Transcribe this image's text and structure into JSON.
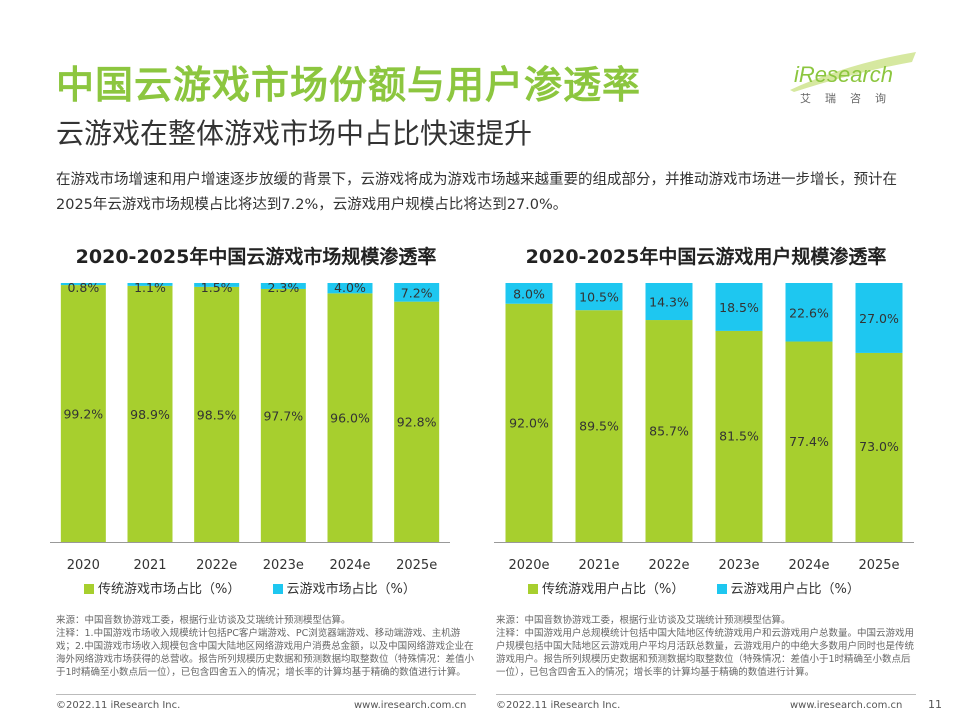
{
  "header": {
    "title": "中国云游戏市场份额与用户渗透率",
    "subtitle": "云游戏在整体游戏市场中占比快速提升",
    "logo_word": "iResearch",
    "logo_sub": "艾瑞咨询"
  },
  "intro": "在游戏市场增速和用户增速逐步放缓的背景下，云游戏将成为游戏市场越来越重要的组成部分，并推动游戏市场进一步增长，预计在2025年云游戏市场规模占比将达到7.2%，云游戏用户规模占比将达到27.0%。",
  "colors": {
    "traditional": "#a7cf2e",
    "cloud": "#1ec7f0",
    "title": "#8cc63f"
  },
  "chart_data": [
    {
      "type": "bar",
      "stacked": true,
      "title": "2020-2025年中国云游戏市场规模渗透率",
      "categories": [
        "2020",
        "2021",
        "2022e",
        "2023e",
        "2024e",
        "2025e"
      ],
      "ylim": [
        0,
        100
      ],
      "series": [
        {
          "name": "传统游戏市场占比（%）",
          "values": [
            99.2,
            98.9,
            98.5,
            97.7,
            96.0,
            92.8
          ]
        },
        {
          "name": "云游戏市场占比（%）",
          "values": [
            0.8,
            1.1,
            1.5,
            2.3,
            4.0,
            7.2
          ]
        }
      ]
    },
    {
      "type": "bar",
      "stacked": true,
      "title": "2020-2025年中国云游戏用户规模渗透率",
      "categories": [
        "2020e",
        "2021e",
        "2022e",
        "2023e",
        "2024e",
        "2025e"
      ],
      "ylim": [
        0,
        100
      ],
      "series": [
        {
          "name": "传统游戏用户占比（%）",
          "values": [
            92.0,
            89.5,
            85.7,
            81.5,
            77.4,
            73.0
          ]
        },
        {
          "name": "云游戏用户占比（%）",
          "values": [
            8.0,
            10.5,
            14.3,
            18.5,
            22.6,
            27.0
          ]
        }
      ]
    }
  ],
  "notes": {
    "left": [
      "来源：中国音数协游戏工委，根据行业访谈及艾瑞统计预测模型估算。",
      "注释：1.中国游戏市场收入规模统计包括PC客户端游戏、PC浏览器端游戏、移动端游戏、主机游戏；2.中国游戏市场收入规模包含中国大陆地区网络游戏用户消费总金额，以及中国网络游戏企业在海外网络游戏市场获得的总营收。报告所列规模历史数据和预测数据均取整数位（特殊情况：差值小于1时精确至小数点后一位），已包含四舍五入的情况；增长率的计算均基于精确的数值进行计算。"
    ],
    "right": [
      "来源：中国音数协游戏工委，根据行业访谈及艾瑞统计预测模型估算。",
      "注释：中国游戏用户总规模统计包括中国大陆地区传统游戏用户和云游戏用户总数量。中国云游戏用户规模包括中国大陆地区云游戏用户平均月活跃总数量，云游戏用户的中绝大多数用户同时也是传统游戏用户。报告所列规模历史数据和预测数据均取整数位（特殊情况：差值小于1时精确至小数点后一位），已包含四舍五入的情况；增长率的计算均基于精确的数值进行计算。"
    ]
  },
  "footer": {
    "copyright": "©2022.11 iResearch Inc.",
    "url": "www.iresearch.com.cn",
    "page": "11"
  }
}
